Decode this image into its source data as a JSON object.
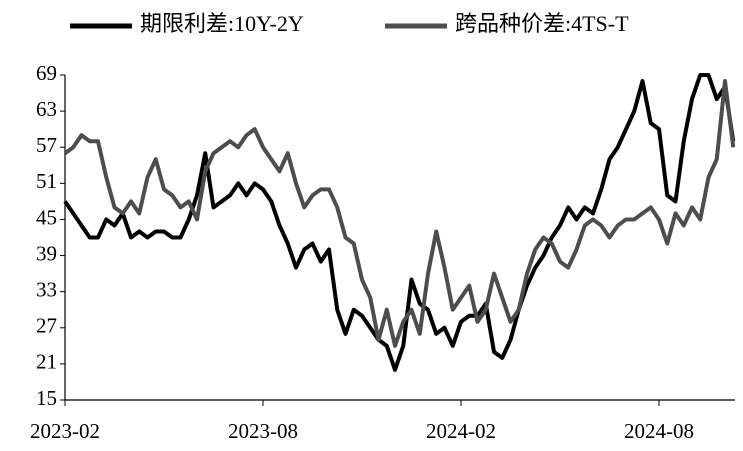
{
  "chart_data": {
    "type": "line",
    "x": [
      "2023-02",
      "2023-02",
      "2023-02",
      "2023-02",
      "2023-03",
      "2023-03",
      "2023-03",
      "2023-03",
      "2023-04",
      "2023-04",
      "2023-04",
      "2023-04",
      "2023-05",
      "2023-05",
      "2023-05",
      "2023-05",
      "2023-06",
      "2023-06",
      "2023-06",
      "2023-06",
      "2023-07",
      "2023-07",
      "2023-07",
      "2023-07",
      "2023-08",
      "2023-08",
      "2023-08",
      "2023-08",
      "2023-09",
      "2023-09",
      "2023-09",
      "2023-09",
      "2023-10",
      "2023-10",
      "2023-10",
      "2023-10",
      "2023-11",
      "2023-11",
      "2023-11",
      "2023-11",
      "2023-12",
      "2023-12",
      "2023-12",
      "2023-12",
      "2024-01",
      "2024-01",
      "2024-01",
      "2024-01",
      "2024-02",
      "2024-02",
      "2024-02",
      "2024-02",
      "2024-03",
      "2024-03",
      "2024-03",
      "2024-03",
      "2024-04",
      "2024-04",
      "2024-04",
      "2024-04",
      "2024-05",
      "2024-05",
      "2024-05",
      "2024-05",
      "2024-06",
      "2024-06",
      "2024-06",
      "2024-06",
      "2024-07",
      "2024-07",
      "2024-07",
      "2024-07",
      "2024-08",
      "2024-08",
      "2024-08",
      "2024-08",
      "2024-09",
      "2024-09",
      "2024-09",
      "2024-09",
      "2024-10",
      "2024-10"
    ],
    "series": [
      {
        "name": "期限利差:10Y-2Y",
        "color": "#000000",
        "values": [
          48,
          46,
          44,
          42,
          42,
          45,
          44,
          46,
          42,
          43,
          42,
          43,
          43,
          42,
          42,
          45,
          49,
          56,
          47,
          48,
          49,
          51,
          49,
          51,
          50,
          48,
          44,
          41,
          37,
          40,
          41,
          38,
          40,
          30,
          26,
          30,
          29,
          27,
          25,
          24,
          20,
          24,
          35,
          31,
          30,
          26,
          27,
          24,
          28,
          29,
          29,
          31,
          23,
          22,
          25,
          30,
          34,
          37,
          39,
          42,
          44,
          47,
          45,
          47,
          46,
          50,
          55,
          57,
          60,
          63,
          68,
          61,
          60,
          49,
          48,
          58,
          65,
          69,
          69,
          65,
          67,
          58
        ]
      },
      {
        "name": "跨品种价差:4TS-T",
        "color": "#4d4d4d",
        "values": [
          56,
          57,
          59,
          58,
          58,
          52,
          47,
          46,
          48,
          46,
          52,
          55,
          50,
          49,
          47,
          48,
          45,
          53,
          56,
          57,
          58,
          57,
          59,
          60,
          57,
          55,
          53,
          56,
          51,
          47,
          49,
          50,
          50,
          47,
          42,
          41,
          35,
          32,
          25,
          30,
          24,
          28,
          30,
          26,
          36,
          43,
          37,
          30,
          32,
          34,
          28,
          30,
          36,
          32,
          28,
          30,
          36,
          40,
          42,
          41,
          38,
          37,
          40,
          44,
          45,
          44,
          42,
          44,
          45,
          45,
          46,
          47,
          45,
          41,
          46,
          44,
          47,
          45,
          52,
          55,
          68,
          57
        ]
      }
    ],
    "xticks": [
      "2023-02",
      "2023-08",
      "2024-02",
      "2024-08"
    ],
    "ylim": [
      15,
      69
    ],
    "yticks": [
      15,
      21,
      27,
      33,
      39,
      45,
      51,
      57,
      63,
      69
    ],
    "legend": "top",
    "grid": false
  }
}
